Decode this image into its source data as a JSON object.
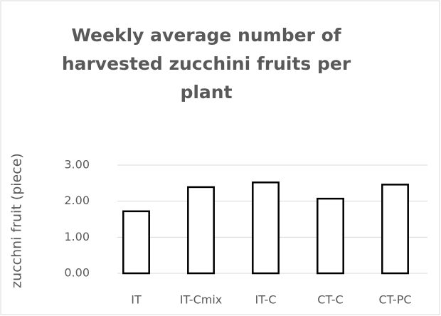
{
  "chart_data": {
    "type": "bar",
    "title": "Weekly average number of harvested zucchini fruits per plant",
    "y_label": "zucchni fruit (piece)",
    "categories": [
      "IT",
      "IT-Cmix",
      "IT-C",
      "CT-C",
      "CT-PC"
    ],
    "values": [
      1.72,
      2.39,
      2.52,
      2.07,
      2.46
    ],
    "color": "#ffffff",
    "edge_color": "#000000",
    "ylim": [
      0,
      3
    ],
    "yticks": [
      {
        "value": 0,
        "label": "0.00"
      },
      {
        "value": 1,
        "label": "1.00"
      },
      {
        "value": 2,
        "label": "2.00"
      },
      {
        "value": 3,
        "label": "3.00"
      }
    ],
    "grid": true
  }
}
